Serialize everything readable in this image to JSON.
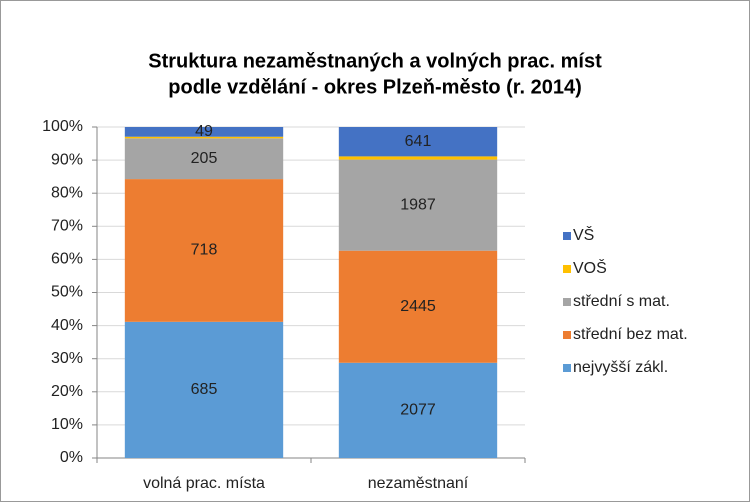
{
  "chart_data": {
    "type": "bar",
    "stacking": "percent",
    "title": [
      "Struktura nezaměstnaných a volných prac. míst",
      "podle vzdělání - okres Plzeň-město (r. 2014)"
    ],
    "categories": [
      "volná prac. místa",
      "nezaměstnaní"
    ],
    "series": [
      {
        "name": "nejvyšší zákl.",
        "color": "#5b9bd5",
        "values": [
          685,
          2077
        ],
        "data_labels": true
      },
      {
        "name": "střední bez mat.",
        "color": "#ed7d31",
        "values": [
          718,
          2445
        ],
        "data_labels": true
      },
      {
        "name": "střední s mat.",
        "color": "#a5a5a5",
        "values": [
          205,
          1987
        ],
        "data_labels": true
      },
      {
        "name": "VOŠ",
        "color": "#ffc000",
        "values": [
          8,
          70
        ],
        "data_labels": false
      },
      {
        "name": "VŠ",
        "color": "#4472c4",
        "values": [
          49,
          641
        ],
        "data_labels": true
      }
    ],
    "ylim": [
      0,
      100
    ],
    "yticks": [
      {
        "value": 0,
        "label": "0%"
      },
      {
        "value": 10,
        "label": "10%"
      },
      {
        "value": 20,
        "label": "20%"
      },
      {
        "value": 30,
        "label": "30%"
      },
      {
        "value": 40,
        "label": "40%"
      },
      {
        "value": 50,
        "label": "50%"
      },
      {
        "value": 60,
        "label": "60%"
      },
      {
        "value": 70,
        "label": "70%"
      },
      {
        "value": 80,
        "label": "80%"
      },
      {
        "value": 90,
        "label": "90%"
      },
      {
        "value": 100,
        "label": "100%"
      }
    ],
    "grid": true,
    "legend": "right"
  }
}
